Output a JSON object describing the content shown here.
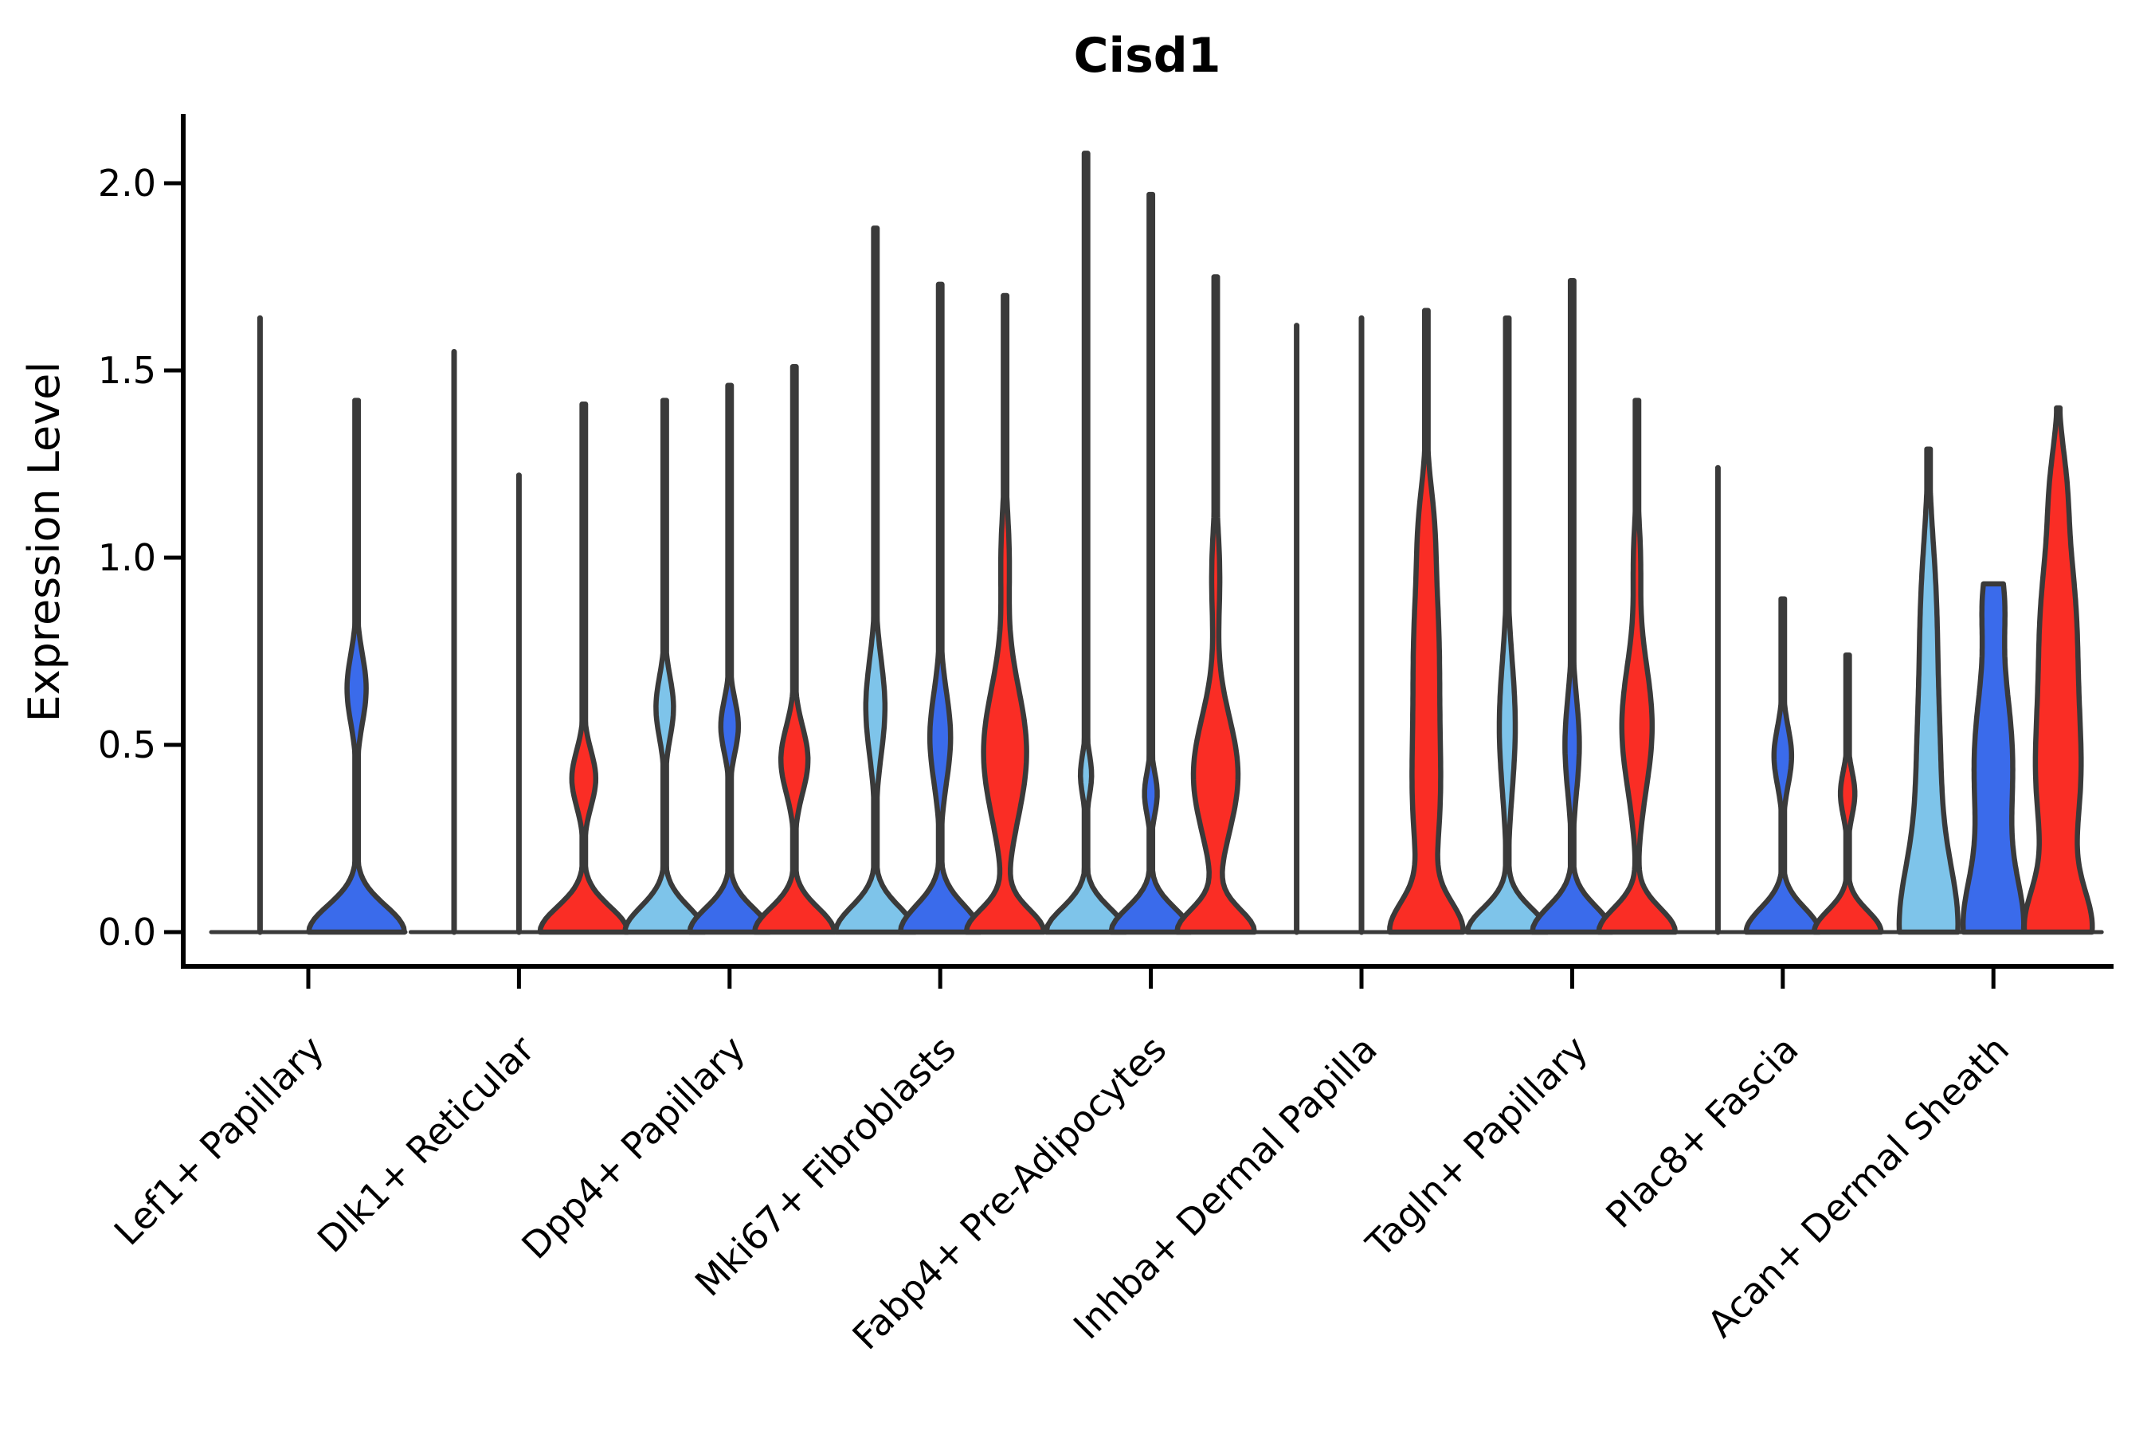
{
  "title": "Cisd1",
  "ylabel": "Expression Level",
  "colors": {
    "lightblue": "#7EC4EA",
    "darkblue": "#3A6BEB",
    "red": "#FA2D25",
    "outline": "#3A3A3A",
    "axis": "#000000"
  },
  "chart_data": {
    "type": "violin",
    "title": "Cisd1",
    "xlabel": "",
    "ylabel": "Expression Level",
    "ylim": [
      -0.09,
      2.18
    ],
    "grid": false,
    "legend": "none",
    "yticks": [
      {
        "v": 0.0,
        "label": "0.0"
      },
      {
        "v": 0.5,
        "label": "0.5"
      },
      {
        "v": 1.0,
        "label": "1.0"
      },
      {
        "v": 1.5,
        "label": "1.5"
      },
      {
        "v": 2.0,
        "label": "2.0"
      }
    ],
    "categories": [
      "Lef1+ Papillary",
      "Dlk1+ Reticular",
      "Dpp4+ Papillary",
      "Mki67+ Fibroblasts",
      "Fabp4+ Pre-Adipocytes",
      "Inhba+ Dermal Papilla",
      "Tagln+ Papillary",
      "Plac8+ Fascia",
      "Acan+ Dermal Sheath"
    ],
    "splits": [
      "lightblue",
      "darkblue",
      "red"
    ],
    "groups": [
      {
        "label": "Lef1+ Papillary",
        "violins": [
          {
            "split": "lightblue",
            "shape": "line",
            "max": 1.64
          },
          {
            "split": "darkblue",
            "shape": "violin",
            "max": 1.42,
            "base": {
              "a": 60,
              "s": 0.1
            },
            "bulges": [
              {
                "c": 0.65,
                "s": 0.13,
                "a": 12
              }
            ]
          }
        ]
      },
      {
        "label": "Dlk1+ Reticular",
        "violins": [
          {
            "split": "lightblue",
            "shape": "line",
            "max": 1.55
          },
          {
            "split": "darkblue",
            "shape": "line",
            "max": 1.22
          },
          {
            "split": "red",
            "shape": "violin",
            "max": 1.41,
            "base": {
              "a": 55,
              "s": 0.095
            },
            "bulges": [
              {
                "c": 0.41,
                "s": 0.105,
                "a": 15
              }
            ]
          }
        ]
      },
      {
        "label": "Dpp4+ Papillary",
        "violins": [
          {
            "split": "lightblue",
            "shape": "violin",
            "max": 1.42,
            "base": {
              "a": 50,
              "s": 0.095
            },
            "bulges": [
              {
                "c": 0.6,
                "s": 0.115,
                "a": 11
              }
            ]
          },
          {
            "split": "darkblue",
            "shape": "violin",
            "max": 1.46,
            "base": {
              "a": 50,
              "s": 0.09
            },
            "bulges": [
              {
                "c": 0.55,
                "s": 0.1,
                "a": 11
              }
            ]
          },
          {
            "split": "red",
            "shape": "violin",
            "max": 1.51,
            "base": {
              "a": 50,
              "s": 0.09
            },
            "bulges": [
              {
                "c": 0.46,
                "s": 0.125,
                "a": 17
              }
            ]
          }
        ]
      },
      {
        "label": "Mki67+ Fibroblasts",
        "violins": [
          {
            "split": "lightblue",
            "shape": "violin",
            "max": 1.88,
            "base": {
              "a": 50,
              "s": 0.095
            },
            "bulges": [
              {
                "c": 0.6,
                "s": 0.18,
                "a": 12
              }
            ]
          },
          {
            "split": "darkblue",
            "shape": "violin",
            "max": 1.73,
            "base": {
              "a": 50,
              "s": 0.1
            },
            "bulges": [
              {
                "c": 0.52,
                "s": 0.17,
                "a": 13
              }
            ]
          },
          {
            "split": "red",
            "shape": "violin",
            "max": 1.7,
            "base": {
              "a": 48,
              "s": 0.085
            },
            "bulges": [
              {
                "c": 0.48,
                "s": 0.25,
                "a": 27
              },
              {
                "c": 1.0,
                "s": 0.18,
                "a": 5
              }
            ]
          }
        ]
      },
      {
        "label": "Fabp4+ Pre-Adipocytes",
        "violins": [
          {
            "split": "lightblue",
            "shape": "violin",
            "max": 2.08,
            "base": {
              "a": 50,
              "s": 0.09
            },
            "bulges": [
              {
                "c": 0.42,
                "s": 0.08,
                "a": 7
              }
            ]
          },
          {
            "split": "darkblue",
            "shape": "violin",
            "max": 1.97,
            "base": {
              "a": 50,
              "s": 0.09
            },
            "bulges": [
              {
                "c": 0.37,
                "s": 0.08,
                "a": 8
              }
            ]
          },
          {
            "split": "red",
            "shape": "violin",
            "max": 1.75,
            "base": {
              "a": 48,
              "s": 0.085
            },
            "bulges": [
              {
                "c": 0.42,
                "s": 0.22,
                "a": 28
              },
              {
                "c": 0.95,
                "s": 0.18,
                "a": 5
              }
            ]
          }
        ]
      },
      {
        "label": "Inhba+ Dermal Papilla",
        "violins": [
          {
            "split": "lightblue",
            "shape": "line",
            "max": 1.62
          },
          {
            "split": "darkblue",
            "shape": "line",
            "max": 1.64
          },
          {
            "split": "red",
            "shape": "violin",
            "max": 1.66,
            "base": {
              "a": 42,
              "s": 0.11
            },
            "bulges": [
              {
                "c": 0.35,
                "s": 0.3,
                "a": 16
              },
              {
                "c": 0.8,
                "s": 0.3,
                "a": 14
              },
              {
                "c": 1.1,
                "s": 0.15,
                "a": 5
              }
            ]
          }
        ]
      },
      {
        "label": "Tagln+ Papillary",
        "violins": [
          {
            "split": "lightblue",
            "shape": "violin",
            "max": 1.64,
            "base": {
              "a": 50,
              "s": 0.09
            },
            "bulges": [
              {
                "c": 0.55,
                "s": 0.25,
                "a": 10
              }
            ]
          },
          {
            "split": "darkblue",
            "shape": "violin",
            "max": 1.74,
            "base": {
              "a": 50,
              "s": 0.095
            },
            "bulges": [
              {
                "c": 0.5,
                "s": 0.18,
                "a": 9
              }
            ]
          },
          {
            "split": "red",
            "shape": "violin",
            "max": 1.42,
            "base": {
              "a": 48,
              "s": 0.09
            },
            "bulges": [
              {
                "c": 0.55,
                "s": 0.24,
                "a": 19
              },
              {
                "c": 1.0,
                "s": 0.15,
                "a": 4
              }
            ]
          }
        ]
      },
      {
        "label": "Plac8+ Fascia",
        "violins": [
          {
            "split": "lightblue",
            "shape": "line",
            "max": 1.24
          },
          {
            "split": "darkblue",
            "shape": "violin",
            "max": 0.89,
            "base": {
              "a": 46,
              "s": 0.09
            },
            "bulges": [
              {
                "c": 0.47,
                "s": 0.11,
                "a": 11
              }
            ]
          },
          {
            "split": "red",
            "shape": "violin",
            "max": 0.74,
            "base": {
              "a": 42,
              "s": 0.08
            },
            "bulges": [
              {
                "c": 0.37,
                "s": 0.085,
                "a": 9
              }
            ]
          }
        ]
      },
      {
        "label": "Acan+ Dermal Sheath",
        "violins": [
          {
            "split": "lightblue",
            "shape": "violin",
            "max": 1.29,
            "base": {
              "a": 34,
              "s": 0.25
            },
            "bulges": [
              {
                "c": 0.45,
                "s": 0.35,
                "a": 14
              },
              {
                "c": 0.9,
                "s": 0.25,
                "a": 7
              }
            ]
          },
          {
            "split": "darkblue",
            "shape": "violin",
            "max": 0.93,
            "base": {
              "a": 34,
              "s": 0.2
            },
            "bulges": [
              {
                "c": 0.45,
                "s": 0.33,
                "a": 24
              },
              {
                "c": 0.9,
                "s": 0.15,
                "a": 10
              }
            ]
          },
          {
            "split": "red",
            "shape": "violin",
            "max": 1.4,
            "base": {
              "a": 38,
              "s": 0.16
            },
            "bulges": [
              {
                "c": 0.4,
                "s": 0.3,
                "a": 26
              },
              {
                "c": 0.85,
                "s": 0.3,
                "a": 20
              },
              {
                "c": 1.2,
                "s": 0.15,
                "a": 6
              }
            ]
          }
        ]
      }
    ]
  }
}
